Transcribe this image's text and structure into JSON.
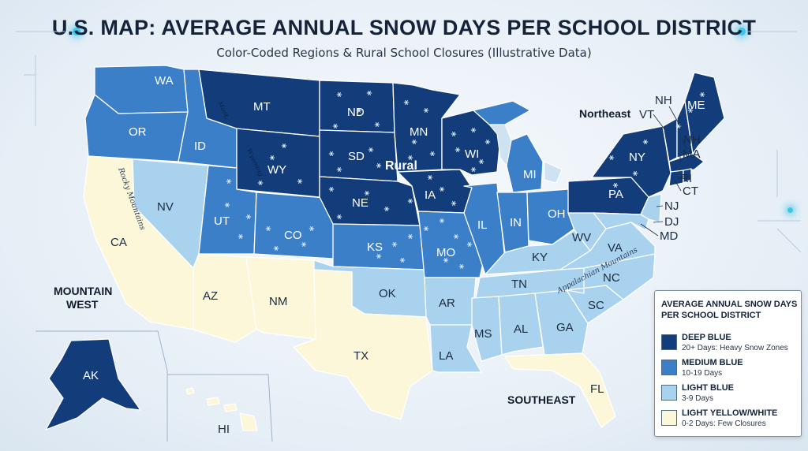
{
  "title": "U.S. MAP: AVERAGE ANNUAL SNOW DAYS PER SCHOOL DISTRICT",
  "subtitle": "Color-Coded Regions & Rural School Closures (Illustrative Data)",
  "colors": {
    "deep": "#123d7a",
    "medium": "#3a7fc8",
    "light": "#a9d2ef",
    "pale": "#fbf7d8",
    "border": "#ffffff",
    "snowflake": "#dbe9f7"
  },
  "states": [
    {
      "abbr": "WA",
      "tier": "medium"
    },
    {
      "abbr": "OR",
      "tier": "medium"
    },
    {
      "abbr": "CA",
      "tier": "pale"
    },
    {
      "abbr": "ID",
      "tier": "medium"
    },
    {
      "abbr": "NV",
      "tier": "light"
    },
    {
      "abbr": "MT",
      "tier": "deep"
    },
    {
      "abbr": "WY",
      "tier": "deep"
    },
    {
      "abbr": "UT",
      "tier": "medium"
    },
    {
      "abbr": "CO",
      "tier": "medium"
    },
    {
      "abbr": "AZ",
      "tier": "pale"
    },
    {
      "abbr": "NM",
      "tier": "pale"
    },
    {
      "abbr": "ND",
      "tier": "deep"
    },
    {
      "abbr": "SD",
      "tier": "deep"
    },
    {
      "abbr": "NE",
      "tier": "deep"
    },
    {
      "abbr": "KS",
      "tier": "medium"
    },
    {
      "abbr": "OK",
      "tier": "light"
    },
    {
      "abbr": "TX",
      "tier": "pale"
    },
    {
      "abbr": "MN",
      "tier": "deep"
    },
    {
      "abbr": "IA",
      "tier": "deep"
    },
    {
      "abbr": "MO",
      "tier": "medium"
    },
    {
      "abbr": "AR",
      "tier": "light"
    },
    {
      "abbr": "LA",
      "tier": "light"
    },
    {
      "abbr": "WI",
      "tier": "deep"
    },
    {
      "abbr": "IL",
      "tier": "medium"
    },
    {
      "abbr": "MI",
      "tier": "medium"
    },
    {
      "abbr": "IN",
      "tier": "medium"
    },
    {
      "abbr": "OH",
      "tier": "medium"
    },
    {
      "abbr": "KY",
      "tier": "light"
    },
    {
      "abbr": "TN",
      "tier": "light"
    },
    {
      "abbr": "MS",
      "tier": "light"
    },
    {
      "abbr": "AL",
      "tier": "light"
    },
    {
      "abbr": "GA",
      "tier": "light"
    },
    {
      "abbr": "FL",
      "tier": "pale"
    },
    {
      "abbr": "SC",
      "tier": "light"
    },
    {
      "abbr": "NC",
      "tier": "light"
    },
    {
      "abbr": "VA",
      "tier": "light"
    },
    {
      "abbr": "WV",
      "tier": "light"
    },
    {
      "abbr": "PA",
      "tier": "deep"
    },
    {
      "abbr": "NY",
      "tier": "deep"
    },
    {
      "abbr": "NJ",
      "tier": "light"
    },
    {
      "abbr": "MD",
      "tier": "light"
    },
    {
      "abbr": "DJ",
      "tier": "light"
    },
    {
      "abbr": "VT",
      "tier": "deep"
    },
    {
      "abbr": "NH",
      "tier": "deep"
    },
    {
      "abbr": "ME",
      "tier": "deep"
    },
    {
      "abbr": "MA",
      "tier": "deep"
    },
    {
      "abbr": "CT",
      "tier": "deep"
    },
    {
      "abbr": "RI",
      "tier": "deep"
    },
    {
      "abbr": "AK",
      "tier": "deep"
    },
    {
      "abbr": "HI",
      "tier": "pale"
    }
  ],
  "ne_labels": {
    "vt": "VT",
    "nh1": "NH",
    "me": "ME",
    "nh2": "NH",
    "ma": "MA",
    "ri": "RI",
    "ct": "CT",
    "nj": "NJ",
    "dj": "DJ",
    "md": "MD",
    "hi": "HI"
  },
  "regions": {
    "northeast": "Northeast",
    "rural": "Rural",
    "mountain_west_1": "MOUNTAIN",
    "mountain_west_2": "WEST",
    "southeast": "SOUTHEAST"
  },
  "features": {
    "rocky": "Rocky Mountains",
    "appalachian": "Appalachian Mountains",
    "mont_small": "Mont.",
    "wy_small": "Wyoming"
  },
  "legend": {
    "title_line1": "AVERAGE ANNUAL SNOW DAYS",
    "title_line2": "PER SCHOOL DISTRICT",
    "items": [
      {
        "label": "DEEP BLUE",
        "desc": "20+ Days: Heavy Snow Zones",
        "color": "#123d7a"
      },
      {
        "label": "MEDIUM BLUE",
        "desc": "10-19 Days",
        "color": "#3a7fc8"
      },
      {
        "label": "LIGHT BLUE",
        "desc": "3-9 Days",
        "color": "#a9d2ef"
      },
      {
        "label": "LIGHT YELLOW/WHITE",
        "desc": "0-2 Days: Few Closures",
        "color": "#fbf7d8"
      }
    ]
  }
}
